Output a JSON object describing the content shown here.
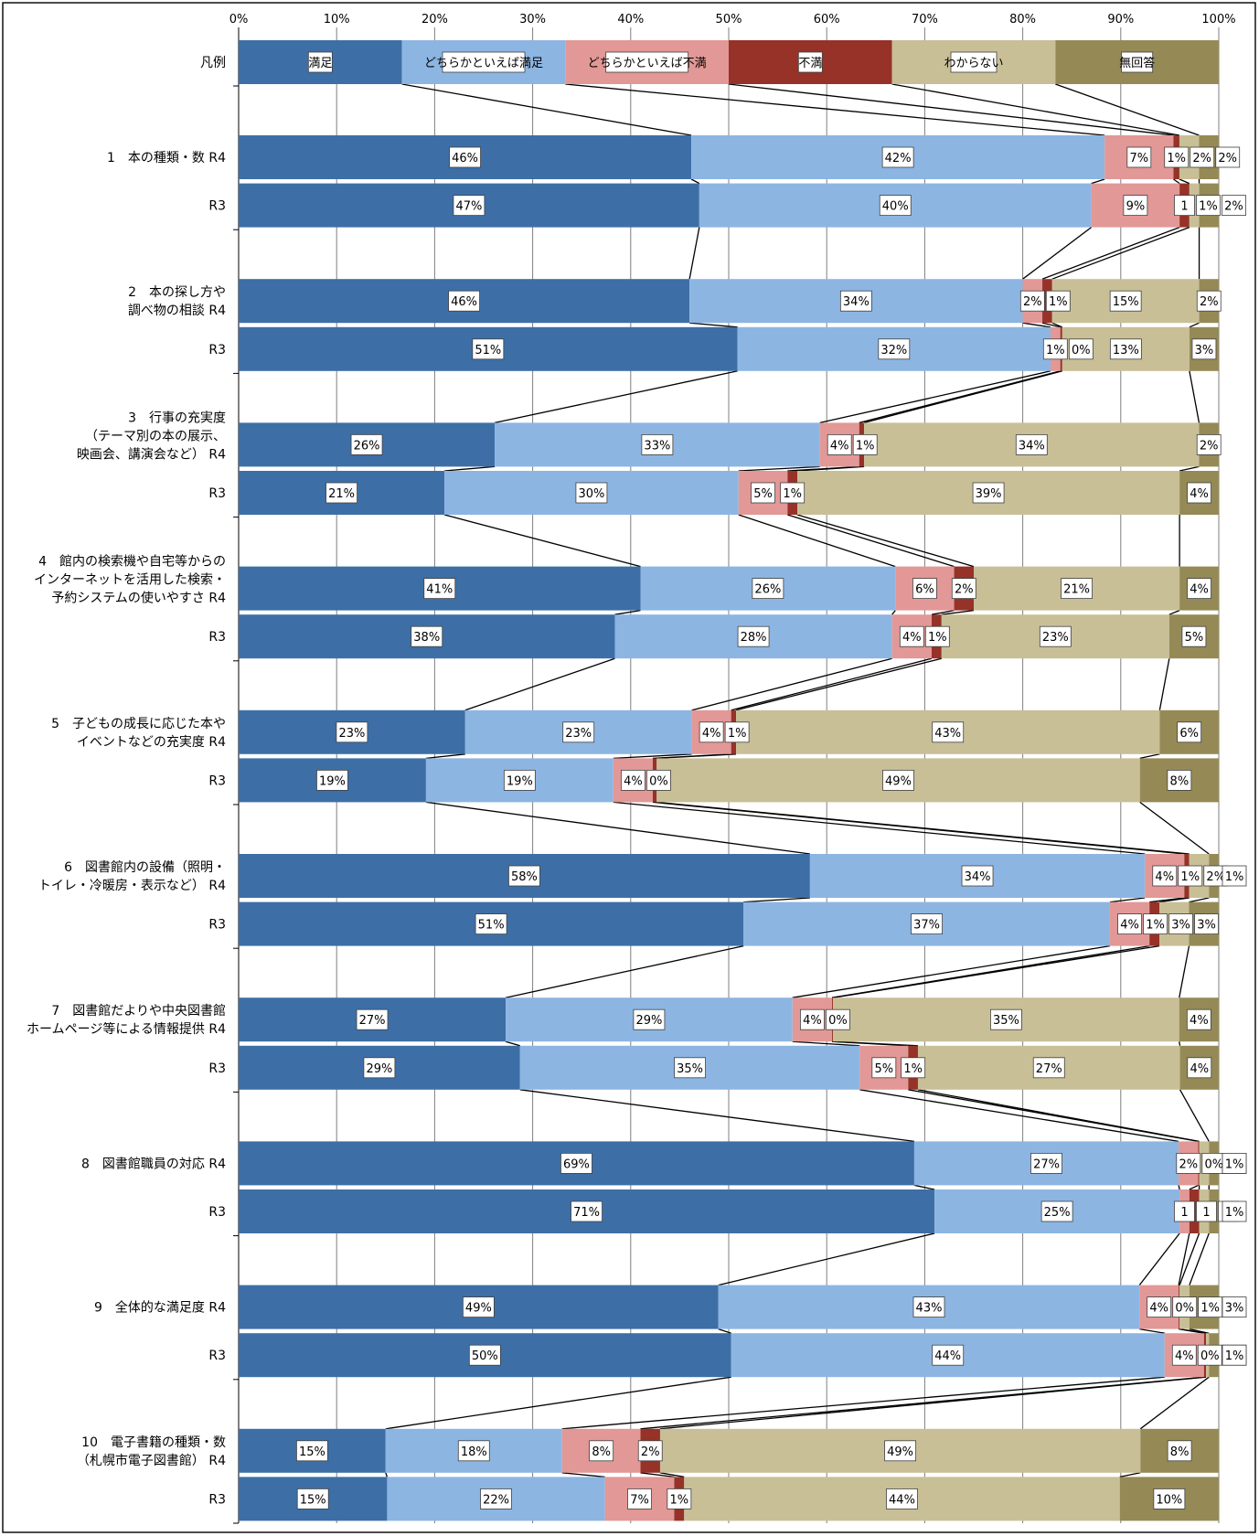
{
  "chart_data": {
    "type": "bar",
    "stacked": "percent",
    "orientation": "horizontal",
    "xlim": [
      0,
      100
    ],
    "x_ticks": [
      "0%",
      "10%",
      "20%",
      "30%",
      "40%",
      "50%",
      "60%",
      "70%",
      "80%",
      "90%",
      "100%"
    ],
    "legend_label": "凡例",
    "series": [
      {
        "name": "満足",
        "color": "#3d6fa6"
      },
      {
        "name": "どちらかといえば満足",
        "color": "#8db5e2"
      },
      {
        "name": "どちらかといえば不満",
        "color": "#e29896"
      },
      {
        "name": "不満",
        "color": "#963228"
      },
      {
        "name": "わからない",
        "color": "#c8bf97"
      },
      {
        "name": "無回答",
        "color": "#958a56"
      }
    ],
    "groups": [
      {
        "label": [
          "1　本の種類・数"
        ],
        "bars": [
          {
            "year": "R4",
            "values": [
              46,
              42,
              7,
              0.6,
              2,
              2
            ],
            "labels": [
              "46%",
              "42%",
              "7%",
              "1%",
              "2%",
              "2%"
            ]
          },
          {
            "year": "R3",
            "values": [
              47,
              40,
              9,
              1,
              1,
              2
            ],
            "labels": [
              "47%",
              "40%",
              "9%",
              "1",
              "1%",
              "2%"
            ]
          }
        ]
      },
      {
        "label": [
          "2　本の探し方や",
          "調べ物の相談"
        ],
        "bars": [
          {
            "year": "R4",
            "values": [
              46,
              34,
              2,
              1,
              15,
              2
            ],
            "labels": [
              "46%",
              "34%",
              "2%",
              "1%",
              "15%",
              "2%"
            ]
          },
          {
            "year": "R3",
            "values": [
              51,
              32,
              1,
              0.2,
              13,
              3
            ],
            "labels": [
              "51%",
              "32%",
              "1%",
              "0%",
              "13%",
              "3%"
            ]
          }
        ]
      },
      {
        "label": [
          "3　行事の充実度",
          "（テーマ別の本の展示、",
          "映画会、講演会など）"
        ],
        "bars": [
          {
            "year": "R4",
            "values": [
              26,
              33,
              4,
              0.5,
              34,
              2
            ],
            "labels": [
              "26%",
              "33%",
              "4%",
              "1%",
              "34%",
              "2%"
            ]
          },
          {
            "year": "R3",
            "values": [
              21,
              30,
              5,
              1,
              39,
              4
            ],
            "labels": [
              "21%",
              "30%",
              "5%",
              "1%",
              "39%",
              "4%"
            ]
          }
        ]
      },
      {
        "label": [
          "4　館内の検索機や自宅等からの",
          "インターネットを活用した検索・",
          "予約システムの使いやすさ"
        ],
        "bars": [
          {
            "year": "R4",
            "values": [
              41,
              26,
              6,
              2,
              21,
              4
            ],
            "labels": [
              "41%",
              "26%",
              "6%",
              "2%",
              "21%",
              "4%"
            ]
          },
          {
            "year": "R3",
            "values": [
              38,
              28,
              4,
              1,
              23,
              5
            ],
            "labels": [
              "38%",
              "28%",
              "4%",
              "1%",
              "23%",
              "5%"
            ]
          }
        ]
      },
      {
        "label": [
          "5　子どもの成長に応じた本や",
          "イベントなどの充実度"
        ],
        "bars": [
          {
            "year": "R4",
            "values": [
              23,
              23,
              4,
              0.5,
              43,
              6
            ],
            "labels": [
              "23%",
              "23%",
              "4%",
              "1%",
              "43%",
              "6%"
            ]
          },
          {
            "year": "R3",
            "values": [
              19,
              19,
              4,
              0.4,
              49,
              8
            ],
            "labels": [
              "19%",
              "19%",
              "4%",
              "0%",
              "49%",
              "8%"
            ]
          }
        ]
      },
      {
        "label": [
          "6　図書館内の設備（照明・",
          "トイレ・冷暖房・表示など）"
        ],
        "bars": [
          {
            "year": "R4",
            "values": [
              58,
              34,
              4,
              0.5,
              2,
              1
            ],
            "labels": [
              "58%",
              "34%",
              "4%",
              "1%",
              "2%",
              "1%"
            ]
          },
          {
            "year": "R3",
            "values": [
              51,
              37,
              4,
              1,
              3,
              3
            ],
            "labels": [
              "51%",
              "37%",
              "4%",
              "1%",
              "3%",
              "3%"
            ]
          }
        ]
      },
      {
        "label": [
          "7　図書館だよりや中央図書館",
          "ホームページ等による情報提供"
        ],
        "bars": [
          {
            "year": "R4",
            "values": [
              27,
              29,
              4,
              0.1,
              35,
              4
            ],
            "labels": [
              "27%",
              "29%",
              "4%",
              "0%",
              "35%",
              "4%"
            ]
          },
          {
            "year": "R3",
            "values": [
              29,
              35,
              5,
              1,
              27,
              4
            ],
            "labels": [
              "29%",
              "35%",
              "5%",
              "1%",
              "27%",
              "4%"
            ]
          }
        ]
      },
      {
        "label": [
          "8　図書館職員の対応"
        ],
        "bars": [
          {
            "year": "R4",
            "values": [
              69,
              27,
              2,
              0.1,
              1,
              1
            ],
            "labels": [
              "69%",
              "27%",
              "2%",
              "0%",
              "1%",
              "1%"
            ]
          },
          {
            "year": "R3",
            "values": [
              71,
              25,
              1,
              1,
              1,
              1
            ],
            "labels": [
              "71%",
              "25%",
              "1",
              "1",
              "1",
              "1%"
            ]
          }
        ]
      },
      {
        "label": [
          "9　全体的な満足度"
        ],
        "bars": [
          {
            "year": "R4",
            "values": [
              49,
              43,
              4,
              0.1,
              1,
              3
            ],
            "labels": [
              "49%",
              "43%",
              "4%",
              "0%",
              "1%",
              "3%"
            ]
          },
          {
            "year": "R3",
            "values": [
              50,
              44,
              4,
              0.2,
              0.3,
              1
            ],
            "labels": [
              "50%",
              "44%",
              "4%",
              "0%",
              "0%",
              "1%"
            ]
          }
        ]
      },
      {
        "label": [
          "10　電子書籍の種類・数",
          "（札幌市電子図書館）"
        ],
        "bars": [
          {
            "year": "R4",
            "values": [
              15,
              18,
              8,
              2,
              49,
              8
            ],
            "labels": [
              "15%",
              "18%",
              "8%",
              "2%",
              "49%",
              "8%"
            ]
          },
          {
            "year": "R3",
            "values": [
              15,
              22,
              7,
              1,
              44,
              10
            ],
            "labels": [
              "15%",
              "22%",
              "7%",
              "1%",
              "44%",
              "10%"
            ]
          }
        ]
      }
    ]
  }
}
